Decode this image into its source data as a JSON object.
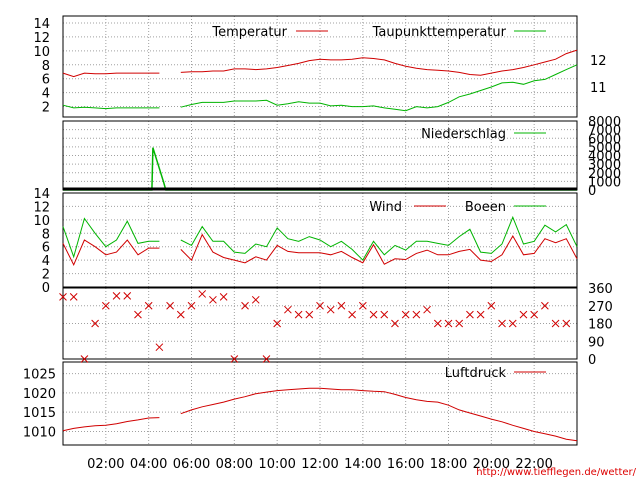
{
  "url": "http://www.tiefflegen.de/wetter/",
  "colors": {
    "red": "#d00000",
    "green": "#00b400",
    "grid": "#a0a0a0"
  },
  "x_ticks": [
    "02:00",
    "04:00",
    "06:00",
    "08:00",
    "10:00",
    "12:00",
    "14:00",
    "16:00",
    "18:00",
    "20:00",
    "22:00"
  ],
  "chart_data": [
    {
      "type": "line",
      "panel": "temperature",
      "legend": [
        "Temperatur",
        "Taupunkttemperatur"
      ],
      "yticks_left": [
        "2",
        "4",
        "6",
        "8",
        "10",
        "12",
        "14"
      ],
      "yticks_right": [
        "11",
        "12"
      ],
      "ylim": [
        0,
        15
      ],
      "x_hours": [
        0,
        0.5,
        1,
        1.5,
        2,
        2.5,
        3,
        3.5,
        4,
        4.5,
        5,
        5.5,
        6,
        6.5,
        7,
        7.5,
        8,
        8.5,
        9,
        9.5,
        10,
        10.5,
        11,
        11.5,
        12,
        12.5,
        13,
        13.5,
        14,
        14.5,
        15,
        15.5,
        16,
        16.5,
        17,
        17.5,
        18,
        18.5,
        19,
        19.5,
        20,
        20.5,
        21,
        21.5,
        22,
        22.5,
        23,
        23.5,
        24
      ],
      "series": [
        {
          "name": "Temperatur",
          "values": [
            6.8,
            6.3,
            6.8,
            6.7,
            6.7,
            6.8,
            6.8,
            6.8,
            6.8,
            6.8,
            null,
            6.9,
            7.0,
            7.0,
            7.1,
            7.1,
            7.4,
            7.4,
            7.3,
            7.4,
            7.6,
            7.9,
            8.2,
            8.6,
            8.8,
            8.7,
            8.7,
            8.8,
            9.0,
            8.9,
            8.7,
            8.2,
            7.8,
            7.5,
            7.3,
            7.2,
            7.1,
            6.9,
            6.6,
            6.5,
            6.8,
            7.1,
            7.3,
            7.6,
            8.0,
            8.4,
            8.8,
            9.6,
            10.1
          ]
        },
        {
          "name": "Taupunkttemperatur",
          "values": [
            2.2,
            1.8,
            1.9,
            1.8,
            1.7,
            1.8,
            1.8,
            1.8,
            1.8,
            1.8,
            null,
            1.9,
            2.3,
            2.6,
            2.6,
            2.6,
            2.8,
            2.8,
            2.8,
            2.9,
            2.2,
            2.4,
            2.7,
            2.5,
            2.5,
            2.1,
            2.2,
            2.0,
            2.0,
            2.1,
            1.8,
            1.6,
            1.4,
            2.0,
            1.8,
            2.0,
            2.6,
            3.4,
            3.8,
            4.3,
            4.8,
            5.4,
            5.5,
            5.2,
            5.7,
            5.9,
            6.6,
            7.3,
            8.0
          ]
        }
      ]
    },
    {
      "type": "line",
      "panel": "precipitation",
      "legend": [
        "Niederschlag"
      ],
      "yticks_right": [
        "0",
        "1000",
        "2000",
        "3000",
        "4000",
        "5000",
        "6000",
        "7000",
        "8000"
      ],
      "ylim": [
        0,
        8000
      ],
      "spike": {
        "x": 4.2,
        "y": 4900
      }
    },
    {
      "type": "line",
      "panel": "wind",
      "legend": [
        "Wind",
        "Boeen"
      ],
      "yticks_left": [
        "0",
        "2",
        "4",
        "6",
        "8",
        "10",
        "12",
        "14"
      ],
      "ylim": [
        0,
        14
      ],
      "x_hours": [
        0,
        0.5,
        1,
        1.5,
        2,
        2.5,
        3,
        3.5,
        4,
        4.5,
        5,
        5.5,
        6,
        6.5,
        7,
        7.5,
        8,
        8.5,
        9,
        9.5,
        10,
        10.5,
        11,
        11.5,
        12,
        12.5,
        13,
        13.5,
        14,
        14.5,
        15,
        15.5,
        16,
        16.5,
        17,
        17.5,
        18,
        18.5,
        19,
        19.5,
        20,
        20.5,
        21,
        21.5,
        22,
        22.5,
        23,
        23.5,
        24
      ],
      "series": [
        {
          "name": "Wind",
          "values": [
            6.5,
            3.3,
            7.0,
            6.0,
            4.8,
            5.2,
            7.0,
            4.8,
            5.8,
            5.8,
            null,
            5.6,
            4.0,
            7.8,
            5.2,
            4.4,
            4.0,
            3.6,
            4.5,
            4.0,
            6.2,
            5.3,
            5.1,
            5.1,
            5.1,
            4.8,
            5.3,
            4.4,
            3.6,
            6.3,
            3.4,
            4.2,
            4.1,
            5.0,
            5.5,
            4.8,
            4.8,
            5.3,
            5.6,
            4.0,
            3.8,
            4.8,
            7.6,
            4.8,
            5.0,
            7.2,
            6.6,
            7.2,
            4.2
          ]
        },
        {
          "name": "Boeen",
          "values": [
            9.0,
            4.5,
            10.2,
            8.0,
            6.0,
            7.0,
            9.8,
            6.5,
            6.8,
            6.8,
            null,
            7.0,
            6.2,
            9.0,
            6.8,
            6.8,
            5.2,
            5.0,
            6.4,
            6.0,
            8.8,
            7.2,
            6.8,
            7.5,
            7.0,
            6.0,
            6.8,
            5.6,
            4.0,
            6.8,
            4.8,
            6.2,
            5.5,
            6.8,
            6.8,
            6.5,
            6.2,
            7.5,
            8.6,
            5.2,
            5.0,
            6.4,
            10.4,
            6.4,
            6.8,
            9.2,
            8.2,
            9.3,
            6.0
          ]
        }
      ]
    },
    {
      "type": "scatter",
      "panel": "wind-direction",
      "yticks_right": [
        "0",
        "90",
        "180",
        "270",
        "360"
      ],
      "ylim": [
        0,
        360
      ],
      "points": [
        [
          0,
          315
        ],
        [
          0.5,
          315
        ],
        [
          1,
          0
        ],
        [
          1.5,
          180
        ],
        [
          2,
          270
        ],
        [
          2.5,
          320
        ],
        [
          3,
          320
        ],
        [
          3.5,
          225
        ],
        [
          4,
          270
        ],
        [
          4.5,
          60
        ],
        [
          5,
          270
        ],
        [
          5.5,
          225
        ],
        [
          6,
          270
        ],
        [
          6.5,
          330
        ],
        [
          7,
          300
        ],
        [
          7.5,
          315
        ],
        [
          8,
          0
        ],
        [
          8.5,
          270
        ],
        [
          9,
          300
        ],
        [
          9.5,
          0
        ],
        [
          10,
          180
        ],
        [
          10.5,
          250
        ],
        [
          11,
          225
        ],
        [
          11.5,
          225
        ],
        [
          12,
          270
        ],
        [
          12.5,
          250
        ],
        [
          13,
          270
        ],
        [
          13.5,
          225
        ],
        [
          14,
          270
        ],
        [
          14.5,
          225
        ],
        [
          15,
          225
        ],
        [
          15.5,
          180
        ],
        [
          16,
          225
        ],
        [
          16.5,
          225
        ],
        [
          17,
          250
        ],
        [
          17.5,
          180
        ],
        [
          18,
          180
        ],
        [
          18.5,
          180
        ],
        [
          19,
          225
        ],
        [
          19.5,
          225
        ],
        [
          20,
          270
        ],
        [
          20.5,
          180
        ],
        [
          21,
          180
        ],
        [
          21.5,
          225
        ],
        [
          22,
          225
        ],
        [
          22.5,
          270
        ],
        [
          23,
          180
        ],
        [
          23.5,
          180
        ]
      ]
    },
    {
      "type": "line",
      "panel": "pressure",
      "legend": [
        "Luftdruck"
      ],
      "yticks_left": [
        "1010",
        "1015",
        "1020",
        "1025"
      ],
      "ylim": [
        1005,
        1028
      ],
      "x_hours": [
        0,
        0.5,
        1,
        1.5,
        2,
        2.5,
        3,
        3.5,
        4,
        4.5,
        5,
        5.5,
        6,
        6.5,
        7,
        7.5,
        8,
        8.5,
        9,
        9.5,
        10,
        10.5,
        11,
        11.5,
        12,
        12.5,
        13,
        13.5,
        14,
        14.5,
        15,
        15.5,
        16,
        16.5,
        17,
        17.5,
        18,
        18.5,
        19,
        19.5,
        20,
        20.5,
        21,
        21.5,
        22,
        22.5,
        23,
        23.5,
        24
      ],
      "series": [
        {
          "name": "Luftdruck",
          "values": [
            1010.2,
            1010.8,
            1011.2,
            1011.5,
            1011.6,
            1012.0,
            1012.6,
            1013.0,
            1013.5,
            1013.6,
            null,
            1014.6,
            1015.6,
            1016.4,
            1017.0,
            1017.6,
            1018.4,
            1019.0,
            1019.8,
            1020.2,
            1020.6,
            1020.8,
            1021.0,
            1021.2,
            1021.2,
            1021.0,
            1020.8,
            1020.8,
            1020.6,
            1020.4,
            1020.3,
            1019.6,
            1018.8,
            1018.2,
            1017.8,
            1017.6,
            1016.8,
            1015.6,
            1014.8,
            1014.0,
            1013.2,
            1012.5,
            1011.6,
            1010.8,
            1010.0,
            1009.4,
            1008.8,
            1008.0,
            1007.6
          ]
        }
      ]
    }
  ]
}
